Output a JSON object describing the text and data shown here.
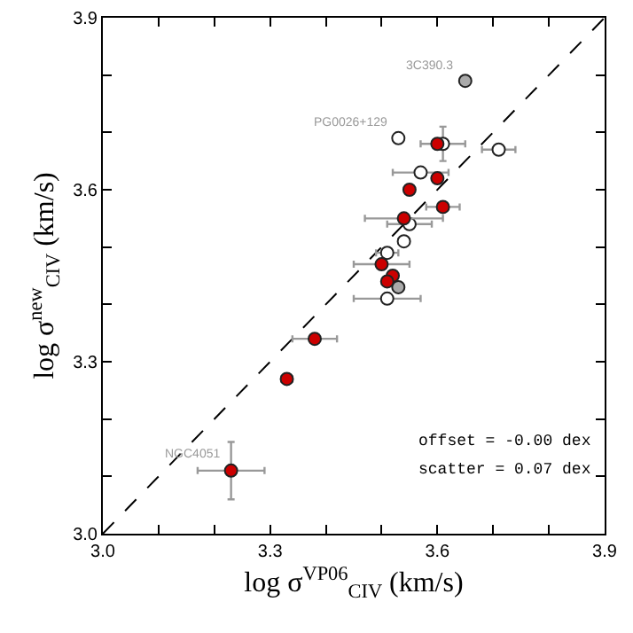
{
  "chart_data": {
    "type": "scatter",
    "xlabel": "log σ$^{VP06}$$_{CIV}$ (km/s)",
    "ylabel": "log σ$^{new}$$_{CIV}$ (km/s)",
    "xlim": [
      3.0,
      3.9
    ],
    "ylim": [
      3.0,
      3.9
    ],
    "xticks": [
      {
        "value": 3.0,
        "label": "3.0"
      },
      {
        "value": 3.1,
        "label": null
      },
      {
        "value": 3.2,
        "label": null
      },
      3.3,
      {
        "value": 3.4,
        "label": null
      },
      {
        "value": 3.5,
        "label": null
      },
      3.6,
      {
        "value": 3.7,
        "label": null
      },
      {
        "value": 3.8,
        "label": null
      },
      3.9
    ],
    "yticks": [
      {
        "value": 3.0,
        "label": "3.0"
      },
      {
        "value": 3.1,
        "label": null
      },
      {
        "value": 3.2,
        "label": null
      },
      3.3,
      {
        "value": 3.4,
        "label": null
      },
      {
        "value": 3.5,
        "label": null
      },
      3.6,
      {
        "value": 3.7,
        "label": null
      },
      {
        "value": 3.8,
        "label": null
      },
      3.9
    ],
    "grid": false,
    "marker": "circle",
    "series": [
      {
        "type": "line",
        "color": "#000000",
        "line_style": "dashed",
        "marker": "none",
        "x": [
          3.0,
          3.9
        ],
        "values": [
          3.0,
          3.9
        ]
      },
      {
        "color": "#ffffff",
        "x": [
          3.53,
          3.61,
          3.71,
          3.57,
          3.55,
          3.54,
          3.51,
          3.51
        ],
        "values": [
          3.69,
          3.68,
          3.67,
          3.63,
          3.54,
          3.51,
          3.49,
          3.41
        ],
        "xerrors": [
          null,
          0.04,
          0.03,
          0.05,
          0.04,
          0.01,
          0.02,
          0.06
        ],
        "errors": [
          null,
          0.03,
          null,
          null,
          null,
          null,
          null,
          null
        ]
      },
      {
        "color": "#aaaaaa",
        "x": [
          3.65,
          3.53
        ],
        "values": [
          3.79,
          3.43
        ],
        "xerrors": [
          null,
          null
        ],
        "errors": [
          null,
          null
        ]
      },
      {
        "color": "#cc0000",
        "x": [
          3.6,
          3.6,
          3.55,
          3.61,
          3.54,
          3.5,
          3.52,
          3.51,
          3.38,
          3.33,
          3.23
        ],
        "values": [
          3.68,
          3.62,
          3.6,
          3.57,
          3.55,
          3.47,
          3.45,
          3.44,
          3.34,
          3.27,
          3.11
        ],
        "xerrors": [
          null,
          null,
          null,
          0.03,
          0.07,
          0.05,
          null,
          null,
          0.04,
          0.01,
          0.06
        ],
        "errors": [
          null,
          null,
          null,
          null,
          null,
          null,
          null,
          null,
          null,
          null,
          0.05
        ]
      }
    ],
    "annotations": [
      {
        "text": "3C390.3",
        "x": 3.65,
        "y": 3.79
      },
      {
        "text": "PG0026+129",
        "x": 3.53,
        "y": 3.69
      },
      {
        "text": "NGC4051",
        "x": 3.23,
        "y": 3.11
      },
      "offset = -0.00 dex",
      "scatter = 0.07 dex"
    ]
  }
}
